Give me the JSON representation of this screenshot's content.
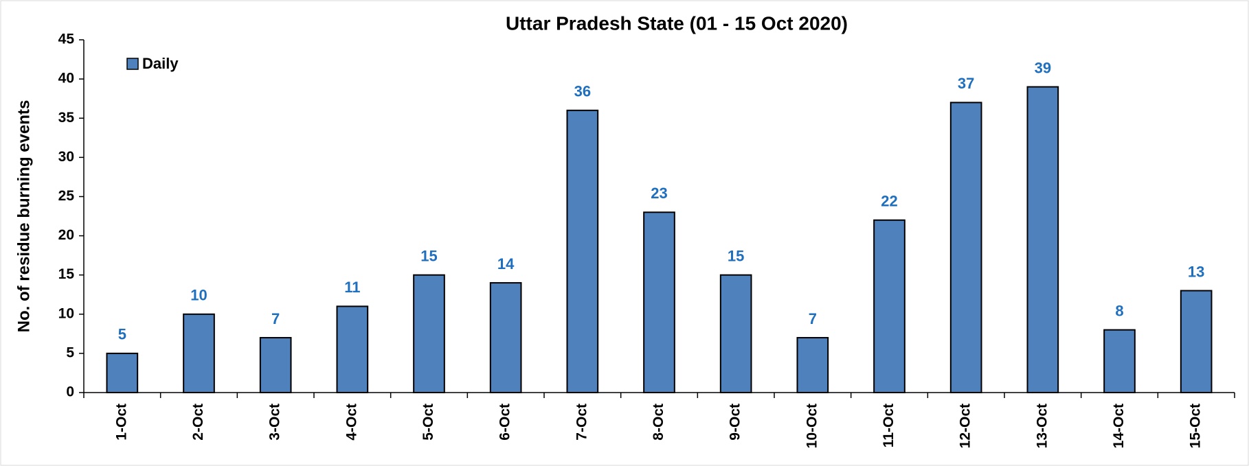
{
  "chart_data": {
    "type": "bar",
    "title": "Uttar Pradesh State (01 - 15 Oct 2020)",
    "y_label": "No. of residue burning events",
    "categories": [
      "1-Oct",
      "2-Oct",
      "3-Oct",
      "4-Oct",
      "5-Oct",
      "6-Oct",
      "7-Oct",
      "8-Oct",
      "9-Oct",
      "10-Oct",
      "11-Oct",
      "12-Oct",
      "13-Oct",
      "14-Oct",
      "15-Oct"
    ],
    "series": [
      {
        "name": "Daily",
        "color": "#4f81bd",
        "values": [
          5,
          10,
          7,
          11,
          15,
          14,
          36,
          23,
          15,
          7,
          22,
          37,
          39,
          8,
          13
        ]
      }
    ],
    "ylim": [
      0,
      45
    ],
    "yticks": [
      0,
      5,
      10,
      15,
      20,
      25,
      30,
      35,
      40,
      45
    ],
    "grid": false,
    "legend": "upper left",
    "value_label_color": "#1f6fbf"
  }
}
